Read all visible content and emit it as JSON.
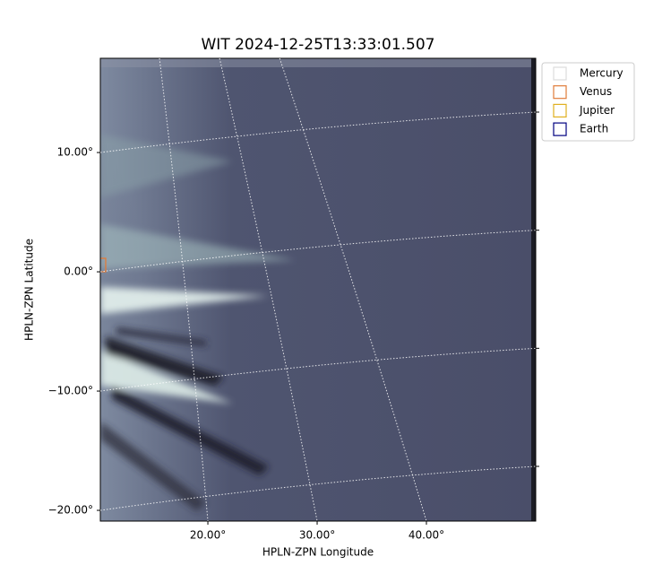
{
  "chart_data": {
    "type": "image",
    "title": "WIT 2024-12-25T13:33:01.507",
    "xlabel": "HPLN-ZPN Longitude",
    "ylabel": "HPLN-ZPN Latitude",
    "xlim": [
      10.16,
      50
    ],
    "ylim": [
      -20.9,
      17.9
    ],
    "xticks": [
      {
        "value": 20,
        "label": "20.00°"
      },
      {
        "value": 30,
        "label": "30.00°"
      },
      {
        "value": 40,
        "label": "40.00°"
      }
    ],
    "yticks": [
      {
        "value": 10,
        "label": "10.00°"
      },
      {
        "value": 0,
        "label": "0.00°"
      },
      {
        "value": -10,
        "label": "−10.00°"
      },
      {
        "value": -20,
        "label": "−20.00°"
      }
    ],
    "grid": true,
    "legend": "upper right",
    "series": [
      {
        "name": "Mercury",
        "color": "#dddddd"
      },
      {
        "name": "Venus",
        "color": "#e07b39"
      },
      {
        "name": "Jupiter",
        "color": "#e0b020"
      },
      {
        "name": "Earth",
        "color": "#000080"
      }
    ]
  }
}
